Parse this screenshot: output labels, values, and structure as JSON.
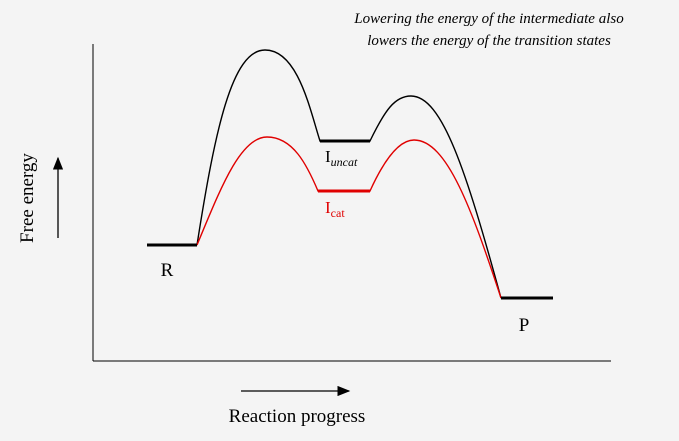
{
  "caption": {
    "line1": "Lowering the energy of the intermediate also",
    "line2": "lowers the energy of the transition states"
  },
  "axes": {
    "y_label": "Free energy",
    "x_label": "Reaction progress"
  },
  "species": {
    "reactant": "R",
    "product": "P",
    "intermediate_uncat": {
      "base": "I",
      "sub": "uncat"
    },
    "intermediate_cat": {
      "base": "I",
      "sub": "cat"
    }
  },
  "colors": {
    "uncatalyzed": "#000000",
    "catalyzed": "#e00000"
  }
}
